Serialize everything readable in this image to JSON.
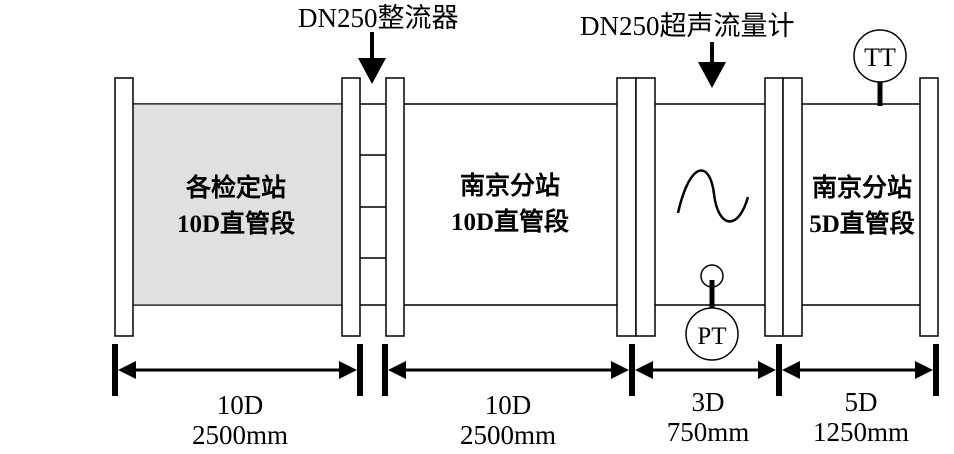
{
  "callouts": {
    "straightener": "DN250整流器",
    "flowmeter": "DN250超声流量计"
  },
  "instruments": {
    "temperature": "TT",
    "pressure": "PT"
  },
  "sections": [
    {
      "line1": "各检定站",
      "line2": "10D直管段"
    },
    {
      "line1": "南京分站",
      "line2": "10D直管段"
    },
    {
      "line1": "南京分站",
      "line2": "5D直管段"
    }
  ],
  "dimensions": [
    {
      "multiple": "10D",
      "length": "2500mm"
    },
    {
      "multiple": "10D",
      "length": "2500mm"
    },
    {
      "multiple": "3D",
      "length": "750mm"
    },
    {
      "multiple": "5D",
      "length": "1250mm"
    }
  ],
  "colors": {
    "shaded_section": "#e0e0e0",
    "line": "#000000"
  }
}
